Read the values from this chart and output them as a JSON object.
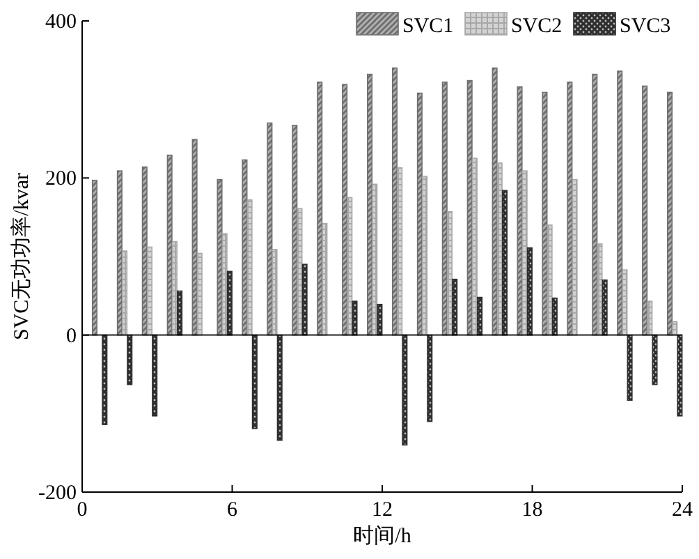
{
  "chart_data": {
    "type": "bar",
    "xlabel": "时间/h",
    "ylabel": "SVC无功功率/kvar",
    "x": [
      1,
      2,
      3,
      4,
      5,
      6,
      7,
      8,
      9,
      10,
      11,
      12,
      13,
      14,
      15,
      16,
      17,
      18,
      19,
      20,
      21,
      22,
      23,
      24
    ],
    "series": [
      {
        "name": "SVC1",
        "color": "#6e6e6e",
        "values": [
          197,
          209,
          214,
          229,
          249,
          198,
          223,
          270,
          267,
          322,
          319,
          332,
          340,
          308,
          322,
          324,
          340,
          316,
          309,
          322,
          332,
          336,
          317,
          309
        ]
      },
      {
        "name": "SVC2",
        "color": "#a8a8a8",
        "values": [
          0,
          107,
          112,
          119,
          104,
          129,
          172,
          109,
          161,
          142,
          175,
          192,
          213,
          202,
          157,
          225,
          219,
          209,
          140,
          198,
          116,
          83,
          43,
          17
        ]
      },
      {
        "name": "SVC3",
        "color": "#2e2e2e",
        "values": [
          -114,
          -63,
          -103,
          56,
          0,
          81,
          -119,
          -134,
          90,
          0,
          43,
          39,
          -140,
          -110,
          71,
          48,
          184,
          111,
          47,
          0,
          70,
          -83,
          -63,
          -103
        ]
      }
    ],
    "xlim": [
      0,
      24
    ],
    "xticks": [
      0,
      6,
      12,
      18,
      24
    ],
    "ylim": [
      -200,
      400
    ],
    "yticks": [
      -200,
      0,
      200,
      400
    ],
    "legend": "top right",
    "grid": false,
    "ref_lines": [
      {
        "axis": "y",
        "value": 0
      }
    ]
  }
}
